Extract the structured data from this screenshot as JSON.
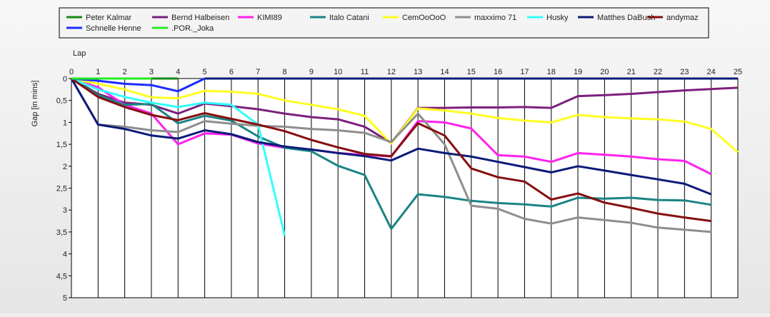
{
  "chart_data": {
    "type": "line",
    "xlabel": "Lap",
    "ylabel": "Gap [in mins]",
    "xlim": [
      0,
      25
    ],
    "ylim": [
      0,
      5
    ],
    "y_inverted": true,
    "grid": true,
    "legend_position": "top",
    "x_ticks": [
      "0",
      "1",
      "2",
      "3",
      "4",
      "5",
      "6",
      "7",
      "8",
      "9",
      "10",
      "11",
      "12",
      "13",
      "14",
      "15",
      "16",
      "17",
      "18",
      "19",
      "20",
      "21",
      "22",
      "23",
      "24",
      "25"
    ],
    "y_ticks": [
      {
        "v": 0,
        "label": "0"
      },
      {
        "v": 0.5,
        "label": "0,5"
      },
      {
        "v": 1,
        "label": "1"
      },
      {
        "v": 1.5,
        "label": "1,5"
      },
      {
        "v": 2,
        "label": "2"
      },
      {
        "v": 2.5,
        "label": "2,5"
      },
      {
        "v": 3,
        "label": "3"
      },
      {
        "v": 3.5,
        "label": "3,5"
      },
      {
        "v": 4,
        "label": "4"
      },
      {
        "v": 4.5,
        "label": "4,5"
      },
      {
        "v": 5,
        "label": "5"
      }
    ],
    "series": [
      {
        "name": "Peter Kalmar",
        "color": "#138a13",
        "values": [
          0,
          0,
          0,
          0,
          0
        ]
      },
      {
        "name": "Bernd Halbeisen",
        "color": "#7d1f7d",
        "values": [
          0,
          0.35,
          0.55,
          0.6,
          0.8,
          0.57,
          0.63,
          0.7,
          0.8,
          0.88,
          0.93,
          1.1,
          1.47,
          0.67,
          0.67,
          0.66,
          0.66,
          0.65,
          0.67,
          0.4,
          0.38,
          0.35,
          0.31,
          0.27,
          0.24,
          0.21
        ]
      },
      {
        "name": "KIMI89",
        "color": "#ff22ee",
        "values": [
          0,
          0.2,
          0.6,
          0.8,
          1.5,
          1.25,
          1.28,
          1.48,
          1.58,
          1.62,
          1.7,
          1.74,
          1.78,
          0.97,
          1.0,
          1.14,
          1.75,
          1.78,
          1.9,
          1.7,
          1.74,
          1.78,
          1.84,
          1.88,
          2.18
        ]
      },
      {
        "name": "Italo Catani",
        "color": "#1a8484",
        "values": [
          0,
          0.38,
          0.6,
          0.58,
          1.02,
          0.85,
          0.96,
          1.32,
          1.58,
          1.66,
          1.99,
          2.2,
          3.43,
          2.64,
          2.7,
          2.79,
          2.84,
          2.87,
          2.92,
          2.72,
          2.74,
          2.72,
          2.77,
          2.78,
          2.88
        ]
      },
      {
        "name": "CemOoOoO",
        "color": "#ffff22",
        "values": [
          0,
          0.12,
          0.25,
          0.43,
          0.45,
          0.28,
          0.3,
          0.35,
          0.5,
          0.6,
          0.7,
          0.85,
          1.48,
          0.68,
          0.73,
          0.8,
          0.9,
          0.96,
          1.0,
          0.83,
          0.88,
          0.91,
          0.93,
          0.98,
          1.15,
          1.68
        ]
      },
      {
        "name": "maxximo 71",
        "color": "#8e8e8e",
        "values": [
          0,
          1.05,
          1.1,
          1.18,
          1.22,
          0.97,
          1.03,
          1.08,
          1.1,
          1.15,
          1.18,
          1.24,
          1.45,
          0.8,
          1.5,
          2.9,
          2.97,
          3.2,
          3.31,
          3.17,
          3.23,
          3.29,
          3.4,
          3.45,
          3.5
        ]
      },
      {
        "name": "Husky",
        "color": "#33ffff",
        "values": [
          0,
          0.25,
          0.42,
          0.55,
          0.65,
          0.55,
          0.6,
          1.05,
          3.58
        ]
      },
      {
        "name": "Matthes DaBush",
        "color": "#0b1a78",
        "values": [
          0,
          1.05,
          1.15,
          1.3,
          1.37,
          1.18,
          1.27,
          1.45,
          1.55,
          1.62,
          1.7,
          1.77,
          1.87,
          1.6,
          1.7,
          1.78,
          1.9,
          2.02,
          2.14,
          2.0,
          2.1,
          2.2,
          2.3,
          2.4,
          2.64
        ]
      },
      {
        "name": "andymaz",
        "color": "#850f0f",
        "values": [
          0,
          0.42,
          0.65,
          0.83,
          0.95,
          0.79,
          0.92,
          1.05,
          1.2,
          1.4,
          1.57,
          1.72,
          1.77,
          1.02,
          1.3,
          2.05,
          2.25,
          2.35,
          2.76,
          2.62,
          2.83,
          2.95,
          3.08,
          3.17,
          3.25
        ]
      },
      {
        "name": "Schnelle Henne",
        "color": "#1a2cff",
        "values": [
          0,
          0.05,
          0.12,
          0.15,
          0.29,
          0
        ]
      },
      {
        "name": ".POR._Joka",
        "color": "#22ee22",
        "values": [
          0,
          0,
          0,
          0
        ]
      },
      {
        "name": "",
        "color": "#0b1a78",
        "x_start": 5,
        "values": [
          0,
          0,
          0,
          0,
          0,
          0,
          0,
          0,
          0,
          0,
          0,
          0,
          0,
          0,
          0,
          0,
          0,
          0,
          0,
          0,
          0
        ]
      }
    ]
  }
}
